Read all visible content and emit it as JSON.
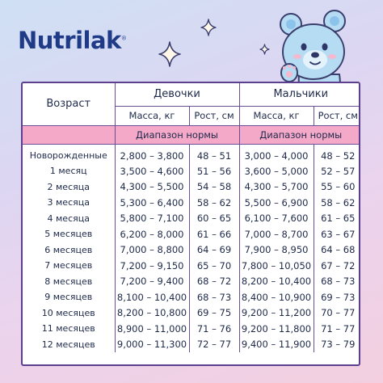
{
  "brand": {
    "name": "Nutrilak",
    "mark": "®"
  },
  "table": {
    "age_header": "Возраст",
    "girls_header": "Девочки",
    "boys_header": "Мальчики",
    "mass_header": "Масса, кг",
    "height_header": "Рост, см",
    "range_label": "Диапазон нормы",
    "rows": [
      {
        "age": "Новорожденные",
        "girls_mass": "2,800 – 3,800",
        "girls_height": "48 – 51",
        "boys_mass": "3,000 – 4,000",
        "boys_height": "48 – 52"
      },
      {
        "age": "1 месяц",
        "girls_mass": "3,500 – 4,600",
        "girls_height": "51 – 56",
        "boys_mass": "3,600 – 5,000",
        "boys_height": "52 – 57"
      },
      {
        "age": "2 месяца",
        "girls_mass": "4,300 – 5,500",
        "girls_height": "54 – 58",
        "boys_mass": "4,300 – 5,700",
        "boys_height": "55 – 60"
      },
      {
        "age": "3 месяца",
        "girls_mass": "5,300 – 6,400",
        "girls_height": "58 – 62",
        "boys_mass": "5,500 – 6,900",
        "boys_height": "58 – 62"
      },
      {
        "age": "4 месяца",
        "girls_mass": "5,800 – 7,100",
        "girls_height": "60 – 65",
        "boys_mass": "6,100 – 7,600",
        "boys_height": "61 – 65"
      },
      {
        "age": "5 месяцев",
        "girls_mass": "6,200 – 8,000",
        "girls_height": "61 – 66",
        "boys_mass": "7,000 – 8,700",
        "boys_height": "63 – 67"
      },
      {
        "age": "6 месяцев",
        "girls_mass": "7,000 – 8,800",
        "girls_height": "64 – 69",
        "boys_mass": "7,900 – 8,950",
        "boys_height": "64 – 68"
      },
      {
        "age": "7 месяцев",
        "girls_mass": "7,200 – 9,150",
        "girls_height": "65 – 70",
        "boys_mass": "7,800 – 10,050",
        "boys_height": "67 – 72"
      },
      {
        "age": "8 месяцев",
        "girls_mass": "7,200 – 9,400",
        "girls_height": "68 – 72",
        "boys_mass": "8,200 – 10,400",
        "boys_height": "68 – 73"
      },
      {
        "age": "9 месяцев",
        "girls_mass": "8,100 – 10,400",
        "girls_height": "68 – 73",
        "boys_mass": "8,400 – 10,900",
        "boys_height": "69 – 73"
      },
      {
        "age": "10 месяцев",
        "girls_mass": "8,200 – 10,800",
        "girls_height": "69 – 75",
        "boys_mass": "9,200 – 11,200",
        "boys_height": "70 – 77"
      },
      {
        "age": "11 месяцев",
        "girls_mass": "8,900 – 11,000",
        "girls_height": "71 – 76",
        "boys_mass": "9,200 – 11,800",
        "boys_height": "71 – 77"
      },
      {
        "age": "12 месяцев",
        "girls_mass": "9,000 – 11,300",
        "girls_height": "72 – 77",
        "boys_mass": "9,400 – 11,900",
        "boys_height": "73 – 79"
      }
    ]
  },
  "colors": {
    "brand": "#1f3a86",
    "accent_pink": "#f4a9c9",
    "border": "#5d3f8f"
  },
  "icons": [
    "sparkle-icon",
    "bear-mascot-icon"
  ]
}
